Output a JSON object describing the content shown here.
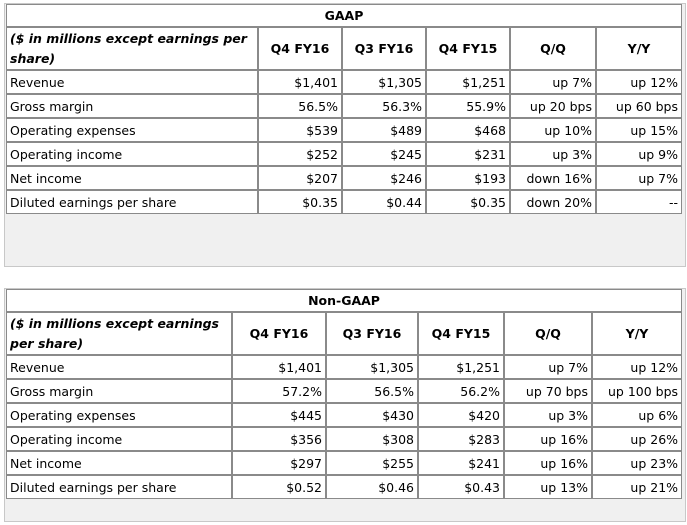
{
  "gaap": {
    "title": "GAAP",
    "header_label": "($ in millions except earnings per share)",
    "columns": [
      "Q4 FY16",
      "Q3 FY16",
      "Q4 FY15",
      "Q/Q",
      "Y/Y"
    ],
    "rows": [
      {
        "label": "Revenue",
        "values": [
          "$1,401",
          "$1,305",
          "$1,251",
          "up 7%",
          "up 12%"
        ]
      },
      {
        "label": "Gross margin",
        "values": [
          "56.5%",
          "56.3%",
          "55.9%",
          "up 20 bps",
          "up 60 bps"
        ]
      },
      {
        "label": "Operating expenses",
        "values": [
          "$539",
          "$489",
          "$468",
          "up 10%",
          "up 15%"
        ]
      },
      {
        "label": "Operating income",
        "values": [
          "$252",
          "$245",
          "$231",
          "up 3%",
          "up 9%"
        ]
      },
      {
        "label": "Net income",
        "values": [
          "$207",
          "$246",
          "$193",
          "down 16%",
          "up 7%"
        ]
      },
      {
        "label": "Diluted earnings per share",
        "values": [
          "$0.35",
          "$0.44",
          "$0.35",
          "down 20%",
          "--"
        ]
      }
    ]
  },
  "nongaap": {
    "title": "Non-GAAP",
    "header_label": "($ in millions except earnings per share)",
    "columns": [
      "Q4 FY16",
      "Q3 FY16",
      "Q4 FY15",
      "Q/Q",
      "Y/Y"
    ],
    "rows": [
      {
        "label": "Revenue",
        "values": [
          "$1,401",
          "$1,305",
          "$1,251",
          "up 7%",
          "up 12%"
        ]
      },
      {
        "label": "Gross margin",
        "values": [
          "57.2%",
          "56.5%",
          "56.2%",
          "up 70 bps",
          "up 100 bps"
        ]
      },
      {
        "label": "Operating expenses",
        "values": [
          "$445",
          "$430",
          "$420",
          "up 3%",
          "up 6%"
        ]
      },
      {
        "label": "Operating income",
        "values": [
          "$356",
          "$308",
          "$283",
          "up 16%",
          "up 26%"
        ]
      },
      {
        "label": "Net income",
        "values": [
          "$297",
          "$255",
          "$241",
          "up 16%",
          "up 23%"
        ]
      },
      {
        "label": "Diluted earnings per share",
        "values": [
          "$0.52",
          "$0.46",
          "$0.43",
          "up 13%",
          "up 21%"
        ]
      }
    ]
  }
}
